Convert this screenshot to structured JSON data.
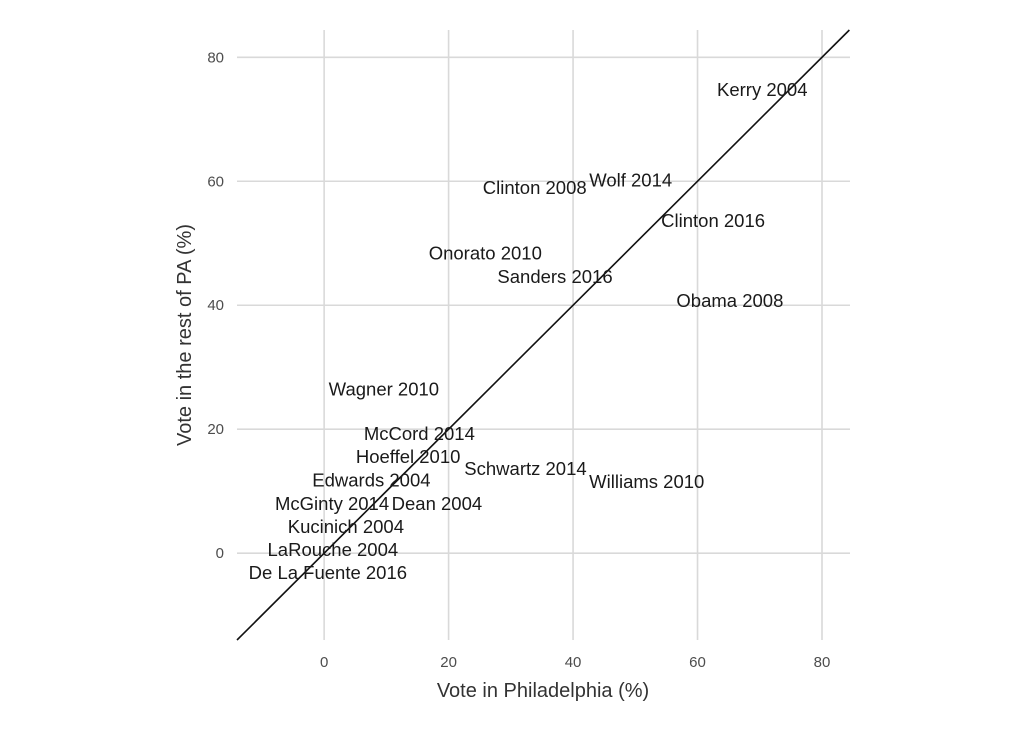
{
  "chart_data": {
    "type": "scatter",
    "marker": "text-label",
    "title": "",
    "xlabel": "Vote in Philadelphia (%)",
    "ylabel": "Vote in the rest of PA (%)",
    "xlim": [
      -14,
      84.5
    ],
    "ylim": [
      -14,
      84.4
    ],
    "xticks": [
      0,
      20,
      40,
      60,
      80
    ],
    "yticks": [
      0,
      20,
      40,
      60,
      80
    ],
    "grid": true,
    "reference_line": {
      "type": "y=x"
    },
    "points": [
      {
        "label": "Kerry 2004",
        "x": 70.4,
        "y": 74.8
      },
      {
        "label": "Wolf 2014",
        "x": 48.2,
        "y": 60.2
      },
      {
        "label": "Clinton 2008",
        "x": 34.9,
        "y": 59.0
      },
      {
        "label": "Clinton 2016",
        "x": 62.5,
        "y": 53.7
      },
      {
        "label": "Onorato 2010",
        "x": 25.9,
        "y": 47.9
      },
      {
        "label": "Sanders 2016",
        "x": 37.1,
        "y": 45.2
      },
      {
        "label": "Obama 2008",
        "x": 65.2,
        "y": 40.8
      },
      {
        "label": "Wagner 2010",
        "x": 9.6,
        "y": 26.5
      },
      {
        "label": "McCord 2014",
        "x": 15.3,
        "y": 17.1
      },
      {
        "label": "Hoeffel 2010",
        "x": 13.5,
        "y": 13.4
      },
      {
        "label": "Schwartz 2014",
        "x": 32.6,
        "y": 13.9
      },
      {
        "label": "Williams 2010",
        "x": 51.6,
        "y": 11.6
      },
      {
        "label": "Edwards 2004",
        "x": 7.6,
        "y": 10.0
      },
      {
        "label": "Dean 2004",
        "x": 17.5,
        "y": 8.9
      },
      {
        "label": "McGinty 2014",
        "x": 1.9,
        "y": 8.4
      },
      {
        "label": "Kucinich 2004",
        "x": 3.5,
        "y": 3.9
      },
      {
        "label": "LaRouche 2004",
        "x": 1.4,
        "y": 1.9
      },
      {
        "label": "De La Fuente 2016",
        "x": 0.6,
        "y": 0.8
      }
    ]
  }
}
